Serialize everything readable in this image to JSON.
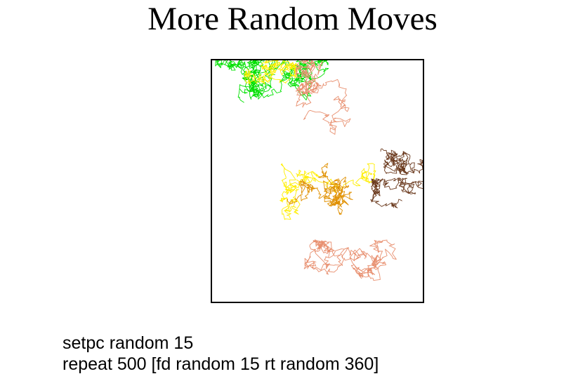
{
  "slide": {
    "title": "More Random Moves"
  },
  "code": {
    "lines": [
      "setpc random 15",
      "repeat 500 [fd random 15 rt random 360]"
    ]
  },
  "drawing": {
    "background": "#ffffff",
    "border_color": "#000000",
    "trail_colors": {
      "green": "#00e000",
      "yellow": "#ffee00",
      "orange": "#e09000",
      "salmon": "#e89070",
      "brown": "#6b3a1e"
    }
  }
}
